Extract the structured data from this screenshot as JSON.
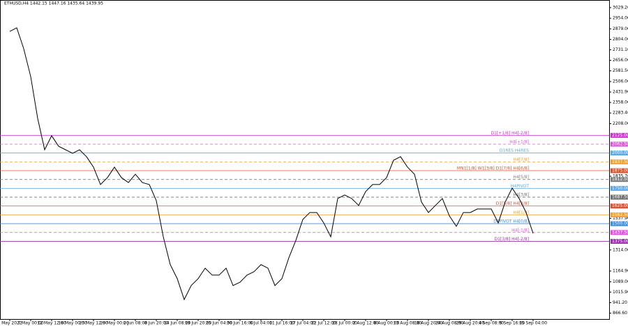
{
  "chart_data": {
    "type": "line",
    "title": "ETHUSD,H4  1442.15 1447.16 1435.64 1439.95",
    "categories": [
      "5 May 2022",
      null,
      null,
      "7 May 00:00",
      null,
      null,
      "12 May 12:00",
      null,
      null,
      "18 May 00:00",
      null,
      null,
      "23 May 12:00",
      null,
      null,
      "29 May 00:00",
      null,
      null,
      "2 Jun 08:00",
      null,
      null,
      "8 Jun 20:00",
      null,
      null,
      "14 Jun 08:00",
      null,
      null,
      "19 Jun 20:00",
      null,
      null,
      "25 Jun 04:00",
      null,
      null,
      "30 Jun 16:00",
      null,
      null,
      "6 Jul 04:00",
      null,
      null,
      "11 Jul 16:00",
      null,
      null,
      "17 Jul 04:00",
      null,
      null,
      "22 Jul 12:00",
      null,
      null,
      "28 Jul 00:00",
      null,
      null,
      "2 Aug 12:00",
      null,
      null,
      "8 Aug 00:00",
      null,
      null,
      "13 Aug 08:00",
      null,
      null,
      "18 Aug 20:00",
      null,
      null,
      "24 Aug 08:00",
      null,
      null,
      "29 Aug 20:00",
      null,
      null,
      "4 Sep 08:00",
      null,
      null,
      "9 Sep 16:00",
      null,
      null,
      "15 Sep 04:00"
    ],
    "series": [
      {
        "name": "ETHUSD,H4",
        "color": "#000000",
        "values": [
          2861,
          2886,
          2738,
          2541,
          2245,
          2023,
          2122,
          2048,
          2023,
          1998,
          2023,
          1974,
          1900,
          1777,
          1826,
          1900,
          1826,
          1791,
          1850,
          1791,
          1777,
          1663,
          1407,
          1210,
          1111,
          963,
          1062,
          1111,
          1185,
          1136,
          1136,
          1185,
          1062,
          1086,
          1136,
          1160,
          1210,
          1185,
          1062,
          1111,
          1259,
          1382,
          1530,
          1579,
          1579,
          1505,
          1407,
          1678,
          1703,
          1678,
          1629,
          1727,
          1777,
          1777,
          1826,
          1949,
          1974,
          1900,
          1850,
          1653,
          1579,
          1629,
          1678,
          1555,
          1481,
          1579,
          1579,
          1604,
          1604,
          1604,
          1505,
          1653,
          1752,
          1678,
          1579,
          1431
        ]
      }
    ],
    "ylim": [
      825,
      3083
    ],
    "yticks": [
      {
        "value": 3029.2,
        "label": "3029.20"
      },
      {
        "value": 2954,
        "label": "2954.00"
      },
      {
        "value": 2879,
        "label": "2879.00"
      },
      {
        "value": 2804,
        "label": "2804.00"
      },
      {
        "value": 2731.1,
        "label": "2731.10"
      },
      {
        "value": 2656,
        "label": "2656.00"
      },
      {
        "value": 2581.5,
        "label": "2581.50"
      },
      {
        "value": 2506,
        "label": "2506.00"
      },
      {
        "value": 2431.9,
        "label": "2431.90"
      },
      {
        "value": 2358,
        "label": "2358.00"
      },
      {
        "value": 2283.4,
        "label": "2283.40"
      },
      {
        "value": 2208,
        "label": "2208.00"
      },
      {
        "value": 1835.7,
        "label": "1835.70"
      },
      {
        "value": 1537.9,
        "label": "1537.90"
      },
      {
        "value": 1314,
        "label": "1314.00"
      },
      {
        "value": 1164.9,
        "label": "1164.90"
      },
      {
        "value": 1089,
        "label": "1089.00"
      },
      {
        "value": 1015.9,
        "label": "1015.90"
      },
      {
        "value": 941.2,
        "label": "941.20"
      },
      {
        "value": 866.6,
        "label": "866.60"
      }
    ],
    "levels": {
      "names": [
        "D1[+1/8] H4[-2/8]",
        "H4[+1/8]",
        "D1RES H4RES",
        "H4[7/8]",
        "MN1[1/8] W1[3/8] D1[7/8] H4[6/8]",
        "H4[5/8]",
        "H4PIVOT",
        "H4[3/8]",
        "D1[5/8] H4[2/8]",
        "H4[1/8]",
        "D1PIVOT H4[0/8]",
        "H4[-1/8]",
        "D1[3/8] H4[-2/8]"
      ],
      "values": [
        2125,
        2062.5,
        2000,
        1937.5,
        1875,
        1812.5,
        1750,
        1687.5,
        1625,
        1562.5,
        1500,
        1437.5,
        1375
      ],
      "value_labels": [
        "2125.00",
        "2062.50",
        "2000.00",
        "1937.50",
        "1875.00",
        "1812.50",
        "1750.00",
        "1687.50",
        "1625.00",
        "1562.50",
        "1500.00",
        "1437.50",
        "1375.00"
      ],
      "colors": [
        "#cc33cc",
        "#dd55dd",
        "#5aa9e6",
        "#f0a030",
        "#e0502a",
        "#808080",
        "#5aa9e6",
        "#707070",
        "#e0502a",
        "#f0a030",
        "#3a8ee0",
        "#dd55dd",
        "#9933aa"
      ],
      "dashed": [
        false,
        true,
        false,
        true,
        false,
        true,
        false,
        true,
        false,
        false,
        false,
        true,
        false
      ]
    }
  }
}
